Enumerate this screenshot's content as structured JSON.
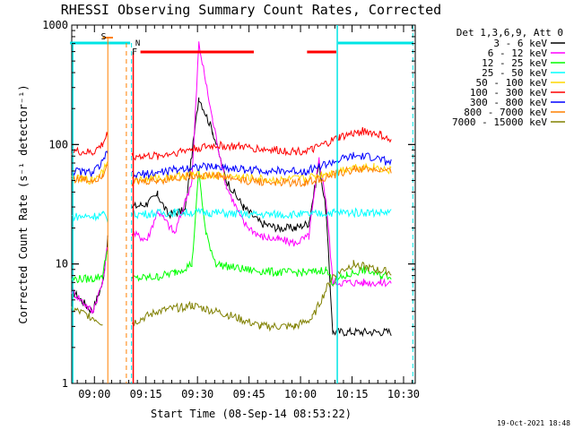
{
  "chart_data": {
    "type": "line",
    "title": "RHESSI Observing Summary Count Rates, Corrected",
    "xlabel": "Start Time (08-Sep-14 08:53:22)",
    "ylabel": "Corrected Count Rate (s⁻¹ detector⁻¹)",
    "yscale": "log",
    "ylim": [
      1,
      1000
    ],
    "xlim_minutes": [
      0,
      100
    ],
    "x_ticks": [
      {
        "m": 6.6,
        "label": "09:00"
      },
      {
        "m": 21.6,
        "label": "09:15"
      },
      {
        "m": 36.6,
        "label": "09:30"
      },
      {
        "m": 51.6,
        "label": "09:45"
      },
      {
        "m": 66.6,
        "label": "10:00"
      },
      {
        "m": 81.6,
        "label": "10:15"
      },
      {
        "m": 96.6,
        "label": "10:30"
      }
    ],
    "y_ticks": [
      {
        "v": 1,
        "label": "1"
      },
      {
        "v": 10,
        "label": "10"
      },
      {
        "v": 100,
        "label": "100"
      },
      {
        "v": 1000,
        "label": "1000"
      }
    ],
    "legend_position": "right",
    "legend_title": "Det 1,3,6,9, Att 0",
    "grid": false,
    "markers": {
      "S": {
        "label": "S",
        "color": "#ff7f00"
      },
      "N": {
        "label": "N",
        "color": "#00e5e5"
      },
      "F": {
        "label": "F",
        "color": "#ff0000"
      }
    },
    "footer_date": "19-Oct-2021 18:48",
    "series": [
      {
        "name": "3 - 6 keV",
        "color": "#000000",
        "points": [
          [
            0,
            6
          ],
          [
            6,
            4
          ],
          [
            9,
            7
          ],
          [
            10.5,
            16
          ],
          [
            13,
            null
          ],
          [
            17.5,
            30
          ],
          [
            22,
            32
          ],
          [
            25,
            38
          ],
          [
            28,
            26
          ],
          [
            33,
            28
          ],
          [
            37,
            250
          ],
          [
            41,
            130
          ],
          [
            45,
            50
          ],
          [
            50,
            30
          ],
          [
            55,
            22
          ],
          [
            60,
            20
          ],
          [
            65,
            20
          ],
          [
            69,
            22
          ],
          [
            72,
            70
          ],
          [
            74,
            28
          ],
          [
            76,
            2.7
          ],
          [
            93,
            2.7
          ]
        ]
      },
      {
        "name": "6 - 12 keV",
        "color": "#ff00ff",
        "points": [
          [
            0,
            6
          ],
          [
            6,
            4
          ],
          [
            9,
            7
          ],
          [
            10.5,
            15
          ],
          [
            13,
            null
          ],
          [
            17.5,
            18
          ],
          [
            22,
            16
          ],
          [
            25,
            28
          ],
          [
            30,
            18
          ],
          [
            35,
            50
          ],
          [
            37,
            700
          ],
          [
            41,
            160
          ],
          [
            45,
            45
          ],
          [
            50,
            22
          ],
          [
            55,
            17
          ],
          [
            60,
            16
          ],
          [
            65,
            15
          ],
          [
            69,
            17
          ],
          [
            72,
            75
          ],
          [
            74,
            35
          ],
          [
            76,
            7
          ],
          [
            80,
            7
          ],
          [
            85,
            7
          ],
          [
            90,
            7
          ],
          [
            93,
            7
          ]
        ]
      },
      {
        "name": "12 - 25 keV",
        "color": "#00ff00",
        "points": [
          [
            0,
            7.5
          ],
          [
            6,
            7.5
          ],
          [
            9,
            8
          ],
          [
            10.5,
            14
          ],
          [
            13,
            null
          ],
          [
            17.5,
            7.5
          ],
          [
            25,
            7.8
          ],
          [
            30,
            8.5
          ],
          [
            35,
            10
          ],
          [
            37,
            60
          ],
          [
            39,
            18
          ],
          [
            42,
            10
          ],
          [
            50,
            9
          ],
          [
            60,
            8.5
          ],
          [
            70,
            8.5
          ],
          [
            74,
            9
          ],
          [
            76,
            7
          ],
          [
            80,
            8
          ],
          [
            85,
            9
          ],
          [
            90,
            8
          ],
          [
            93,
            8
          ]
        ]
      },
      {
        "name": "25 - 50 keV",
        "color": "#00ffff",
        "points": [
          [
            0,
            25
          ],
          [
            6,
            25
          ],
          [
            9,
            26
          ],
          [
            10.5,
            24
          ],
          [
            13,
            null
          ],
          [
            17.5,
            26
          ],
          [
            30,
            27
          ],
          [
            40,
            27
          ],
          [
            50,
            26
          ],
          [
            60,
            26
          ],
          [
            70,
            26
          ],
          [
            76,
            27
          ],
          [
            85,
            27
          ],
          [
            93,
            27
          ]
        ]
      },
      {
        "name": "50 - 100 keV",
        "color": "#ffd700",
        "points": [
          [
            0,
            52
          ],
          [
            6,
            50
          ],
          [
            9,
            60
          ],
          [
            10.5,
            78
          ],
          [
            13,
            null
          ],
          [
            17.5,
            50
          ],
          [
            25,
            52
          ],
          [
            35,
            56
          ],
          [
            42,
            55
          ],
          [
            50,
            53
          ],
          [
            60,
            50
          ],
          [
            68,
            52
          ],
          [
            75,
            58
          ],
          [
            82,
            65
          ],
          [
            88,
            65
          ],
          [
            93,
            60
          ]
        ]
      },
      {
        "name": "100 - 300 keV",
        "color": "#ff0000",
        "points": [
          [
            0,
            88
          ],
          [
            6,
            85
          ],
          [
            9,
            100
          ],
          [
            10.5,
            125
          ],
          [
            13,
            null
          ],
          [
            17.5,
            80
          ],
          [
            25,
            80
          ],
          [
            35,
            92
          ],
          [
            42,
            98
          ],
          [
            50,
            95
          ],
          [
            58,
            90
          ],
          [
            65,
            88
          ],
          [
            70,
            90
          ],
          [
            78,
            115
          ],
          [
            85,
            130
          ],
          [
            90,
            120
          ],
          [
            93,
            105
          ]
        ]
      },
      {
        "name": "300 - 800 keV",
        "color": "#0000ff",
        "points": [
          [
            0,
            60
          ],
          [
            6,
            58
          ],
          [
            9,
            70
          ],
          [
            10.5,
            90
          ],
          [
            13,
            null
          ],
          [
            17.5,
            55
          ],
          [
            25,
            58
          ],
          [
            35,
            65
          ],
          [
            42,
            65
          ],
          [
            50,
            62
          ],
          [
            60,
            60
          ],
          [
            68,
            60
          ],
          [
            75,
            70
          ],
          [
            82,
            80
          ],
          [
            88,
            78
          ],
          [
            93,
            70
          ]
        ]
      },
      {
        "name": "800 - 7000 keV",
        "color": "#ff8000",
        "points": [
          [
            0,
            52
          ],
          [
            6,
            50
          ],
          [
            9,
            56
          ],
          [
            10.5,
            72
          ],
          [
            13,
            null
          ],
          [
            17.5,
            48
          ],
          [
            25,
            50
          ],
          [
            35,
            55
          ],
          [
            42,
            55
          ],
          [
            50,
            50
          ],
          [
            60,
            48
          ],
          [
            68,
            48
          ],
          [
            75,
            54
          ],
          [
            82,
            62
          ],
          [
            88,
            62
          ],
          [
            93,
            58
          ]
        ]
      },
      {
        "name": "7000 - 15000 keV",
        "color": "#808000",
        "points": [
          [
            0,
            4.2
          ],
          [
            6,
            3.6
          ],
          [
            9,
            3.2
          ],
          [
            13,
            null
          ],
          [
            17.5,
            3.2
          ],
          [
            25,
            4
          ],
          [
            35,
            4.5
          ],
          [
            45,
            3.8
          ],
          [
            55,
            3
          ],
          [
            65,
            3
          ],
          [
            70,
            3.5
          ],
          [
            76,
            8
          ],
          [
            82,
            10
          ],
          [
            88,
            9
          ],
          [
            93,
            8.5
          ]
        ]
      }
    ]
  }
}
